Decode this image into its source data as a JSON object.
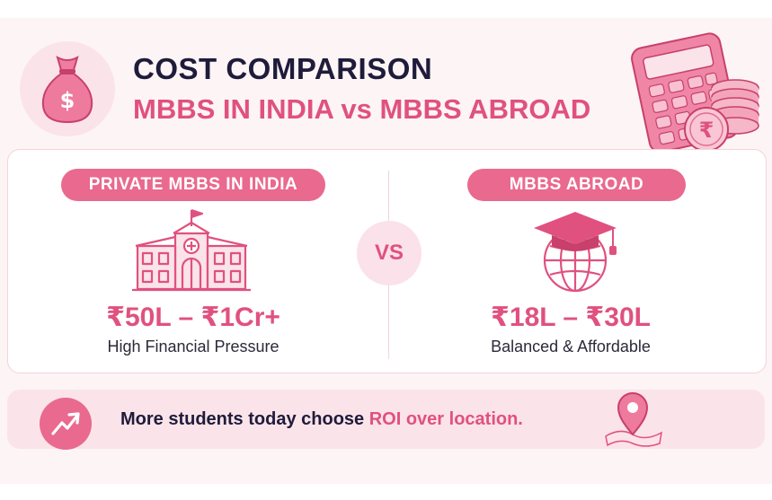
{
  "header": {
    "title_line1": "COST COMPARISON",
    "title_line2": "MBBS IN INDIA vs MBBS ABROAD"
  },
  "left": {
    "label": "PRIVATE MBBS IN INDIA",
    "price": "₹50L – ₹1Cr+",
    "caption": "High Financial Pressure",
    "icon": "hospital-icon"
  },
  "vs_label": "VS",
  "right": {
    "label": "MBBS ABROAD",
    "price": "₹18L – ₹30L",
    "caption": "Balanced & Affordable",
    "icon": "graduation-globe-icon"
  },
  "banner": {
    "text_before": "More students today choose ",
    "text_highlight": "ROI over location.",
    "icons": [
      "trend-up-icon",
      "location-pin-icon"
    ]
  },
  "decor": {
    "money_bag_symbol": "$",
    "coin_symbol": "₹"
  },
  "colors": {
    "accent": "#e0517f",
    "pill": "#e9698f",
    "dark_text": "#1f1b3a",
    "soft_pink": "#fbe3ea"
  }
}
